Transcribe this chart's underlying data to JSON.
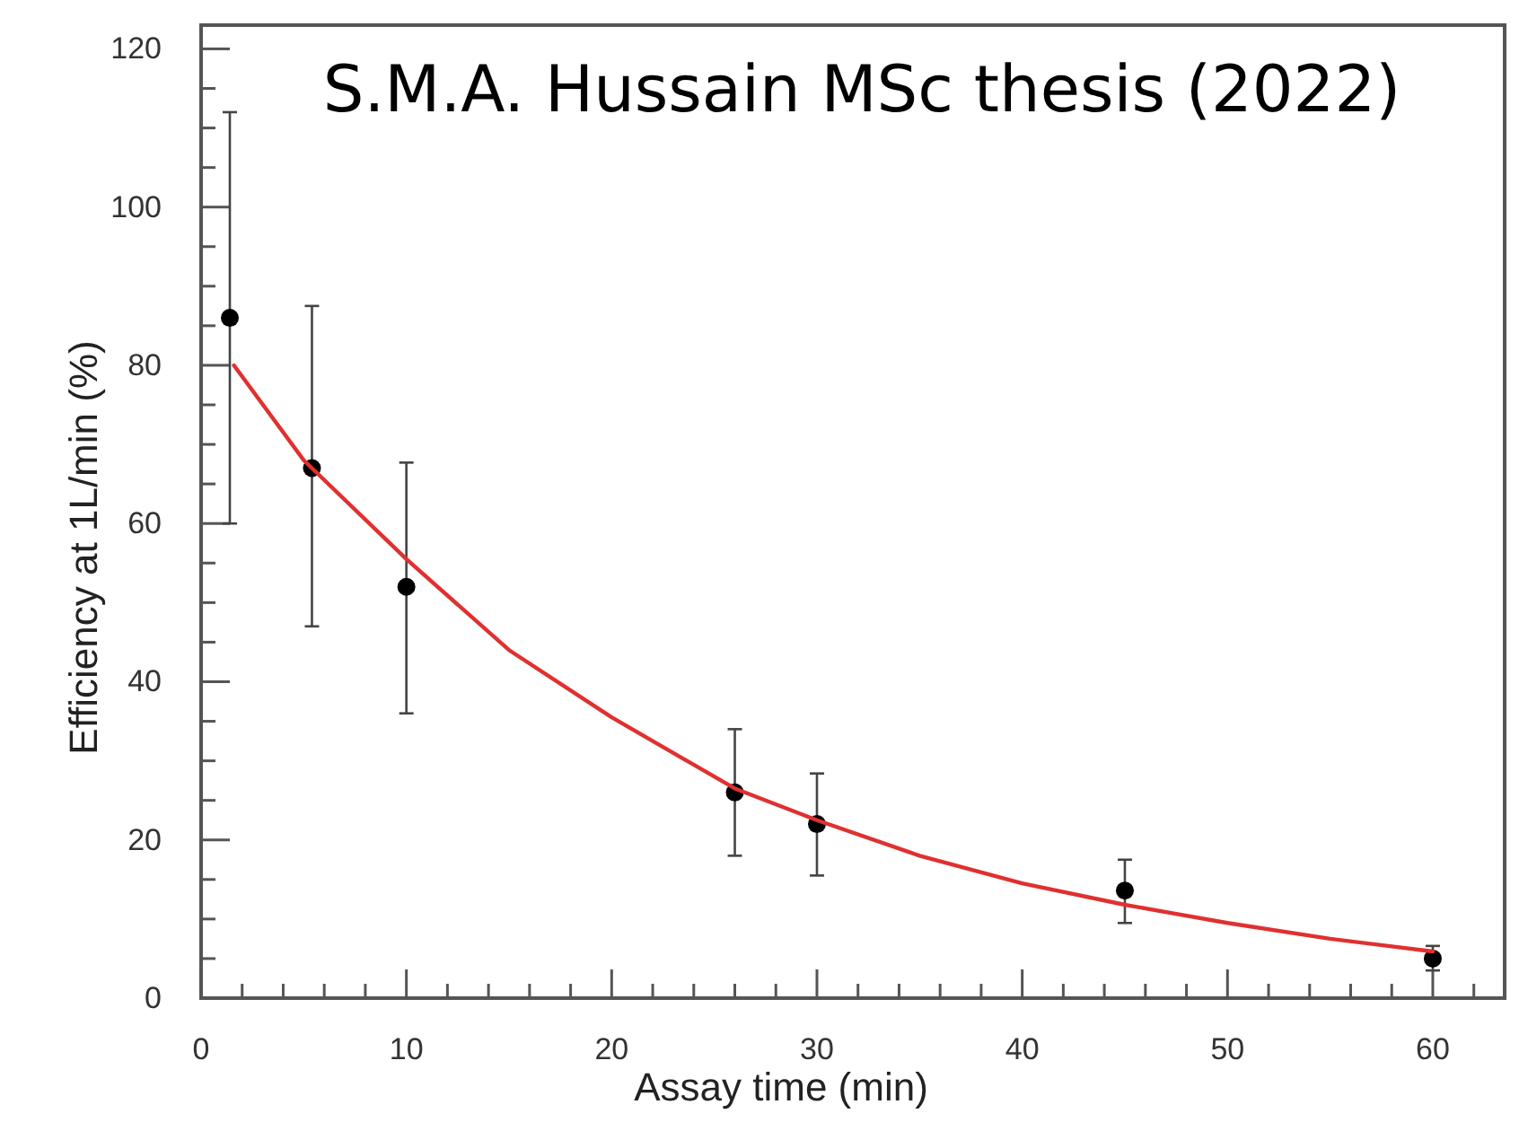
{
  "chart_data": {
    "type": "scatter",
    "xlabel": "Assay time (min)",
    "ylabel": "Efficiency at 1L/min (%)",
    "annotations": [
      "S.M.A. Hussain MSc thesis (2022)"
    ],
    "xlim": [
      0,
      63.5
    ],
    "ylim": [
      0,
      123
    ],
    "xticks": [
      0,
      {
        "value": 2,
        "label": null
      },
      {
        "value": 4,
        "label": null
      },
      {
        "value": 6,
        "label": null
      },
      {
        "value": 8,
        "label": null
      },
      10,
      {
        "value": 12,
        "label": null
      },
      {
        "value": 14,
        "label": null
      },
      {
        "value": 16,
        "label": null
      },
      {
        "value": 18,
        "label": null
      },
      20,
      {
        "value": 22,
        "label": null
      },
      {
        "value": 24,
        "label": null
      },
      {
        "value": 26,
        "label": null
      },
      {
        "value": 28,
        "label": null
      },
      30,
      {
        "value": 32,
        "label": null
      },
      {
        "value": 34,
        "label": null
      },
      {
        "value": 36,
        "label": null
      },
      {
        "value": 38,
        "label": null
      },
      40,
      {
        "value": 42,
        "label": null
      },
      {
        "value": 44,
        "label": null
      },
      {
        "value": 46,
        "label": null
      },
      {
        "value": 48,
        "label": null
      },
      50,
      {
        "value": 52,
        "label": null
      },
      {
        "value": 54,
        "label": null
      },
      {
        "value": 56,
        "label": null
      },
      {
        "value": 58,
        "label": null
      },
      60,
      {
        "value": 62,
        "label": null
      }
    ],
    "yticks": [
      0,
      {
        "value": 5,
        "label": null
      },
      {
        "value": 10,
        "label": null
      },
      {
        "value": 15,
        "label": null
      },
      20,
      {
        "value": 25,
        "label": null
      },
      {
        "value": 30,
        "label": null
      },
      {
        "value": 35,
        "label": null
      },
      40,
      {
        "value": 45,
        "label": null
      },
      {
        "value": 50,
        "label": null
      },
      {
        "value": 55,
        "label": null
      },
      60,
      {
        "value": 65,
        "label": null
      },
      {
        "value": 70,
        "label": null
      },
      {
        "value": 75,
        "label": null
      },
      80,
      {
        "value": 85,
        "label": null
      },
      {
        "value": 90,
        "label": null
      },
      {
        "value": 95,
        "label": null
      },
      100,
      {
        "value": 105,
        "label": null
      },
      {
        "value": 110,
        "label": null
      },
      {
        "value": 115,
        "label": null
      },
      120
    ],
    "grid": false,
    "marker": "circle",
    "series": [
      {
        "color": "#000000",
        "x": [
          1.4,
          5.4,
          10,
          26,
          30,
          45,
          60
        ],
        "values": [
          86,
          67,
          52,
          26,
          22,
          13.6,
          5
        ],
        "errors": [
          [
            60,
            112
          ],
          [
            47,
            87.5
          ],
          [
            36,
            67.7
          ],
          [
            18,
            34
          ],
          [
            15.5,
            28.4
          ],
          [
            9.5,
            17.5
          ],
          [
            3.5,
            6.6
          ]
        ]
      },
      {
        "type": "line",
        "color": "#e03030",
        "marker": "none",
        "line_style": "solid",
        "x": [
          1.6,
          5,
          10,
          15,
          20,
          26,
          30,
          35,
          40,
          45,
          50,
          55,
          60
        ],
        "values": [
          80,
          68,
          55.5,
          44,
          35.5,
          26.5,
          22.5,
          18,
          14.5,
          11.8,
          9.5,
          7.5,
          5.9
        ]
      }
    ]
  }
}
